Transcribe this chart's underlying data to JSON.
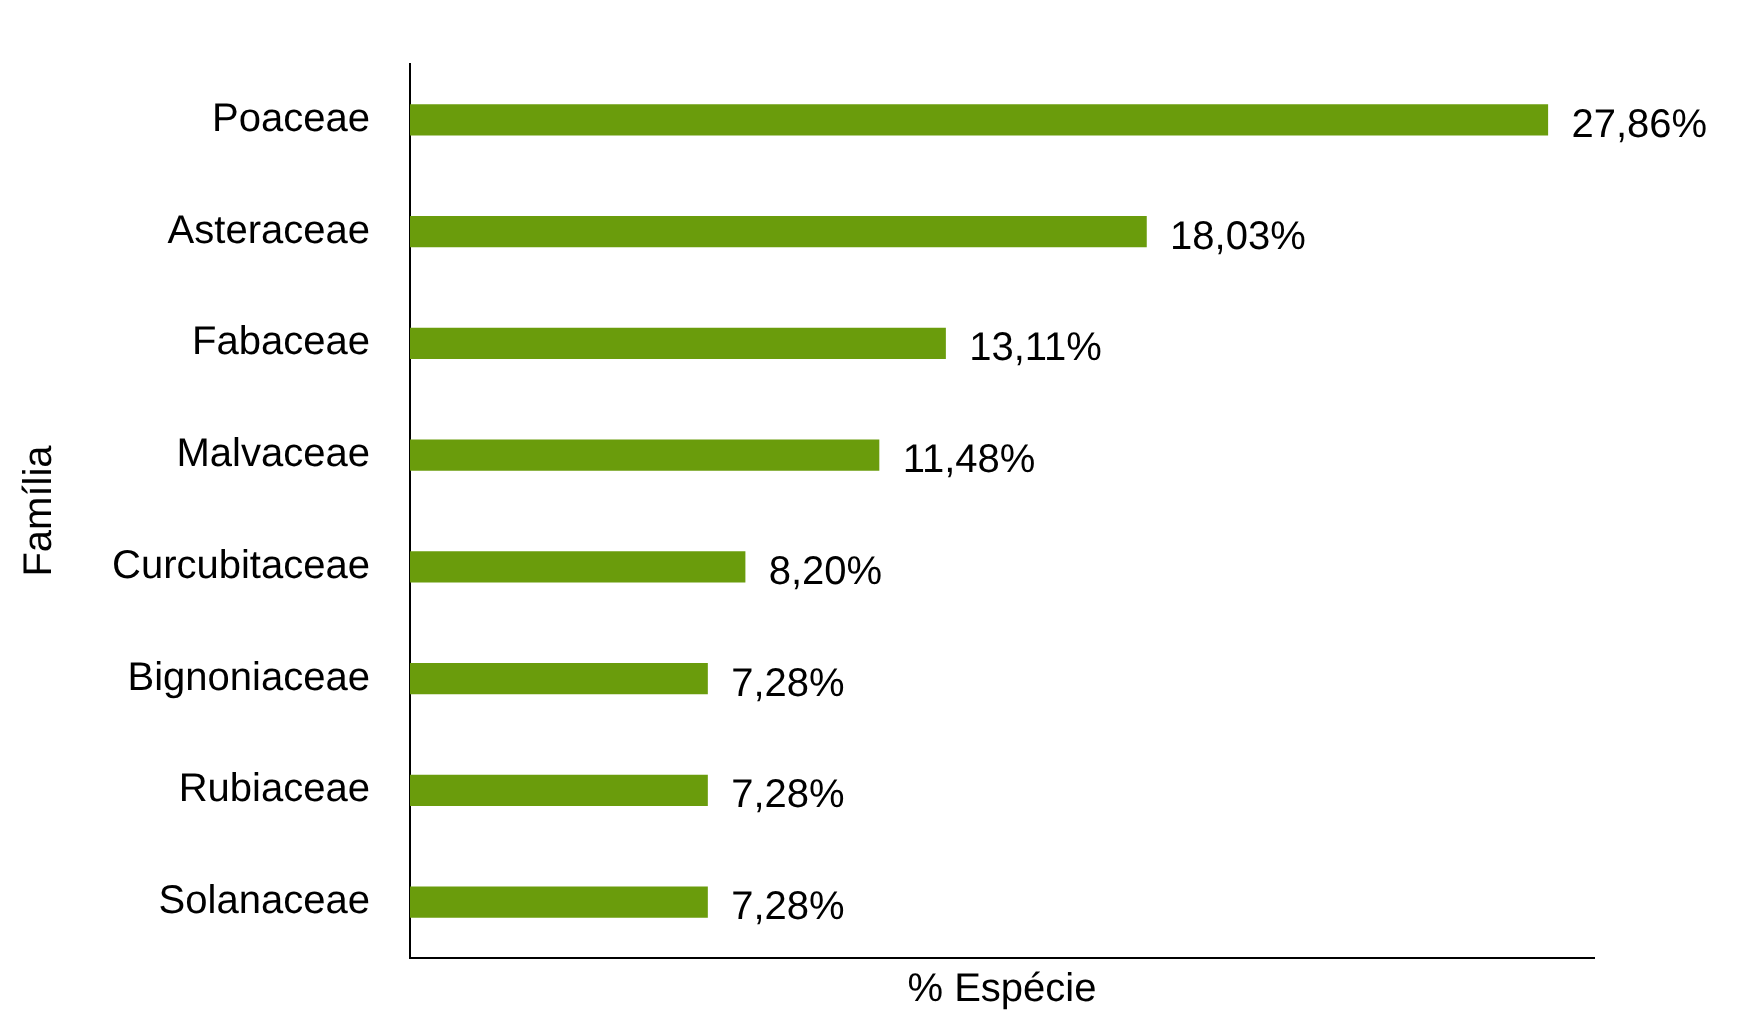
{
  "chart_data": {
    "type": "bar",
    "orientation": "horizontal",
    "xlabel": "% Espécie",
    "ylabel": "Família",
    "categories": [
      "Poaceae",
      "Asteraceae",
      "Fabaceae",
      "Malvaceae",
      "Curcubitaceae",
      "Bignoniaceae",
      "Rubiaceae",
      "Solanaceae"
    ],
    "values": [
      27.86,
      18.03,
      13.11,
      11.48,
      8.2,
      7.28,
      7.28,
      7.28
    ],
    "value_labels": [
      "27,86%",
      "18,03%",
      "13,11%",
      "11,48%",
      "8,20%",
      "7,28%",
      "7,28%",
      "7,28%"
    ],
    "color": "#6a9c0c",
    "xlim": [
      0,
      29
    ],
    "grid": false,
    "legend": false
  }
}
